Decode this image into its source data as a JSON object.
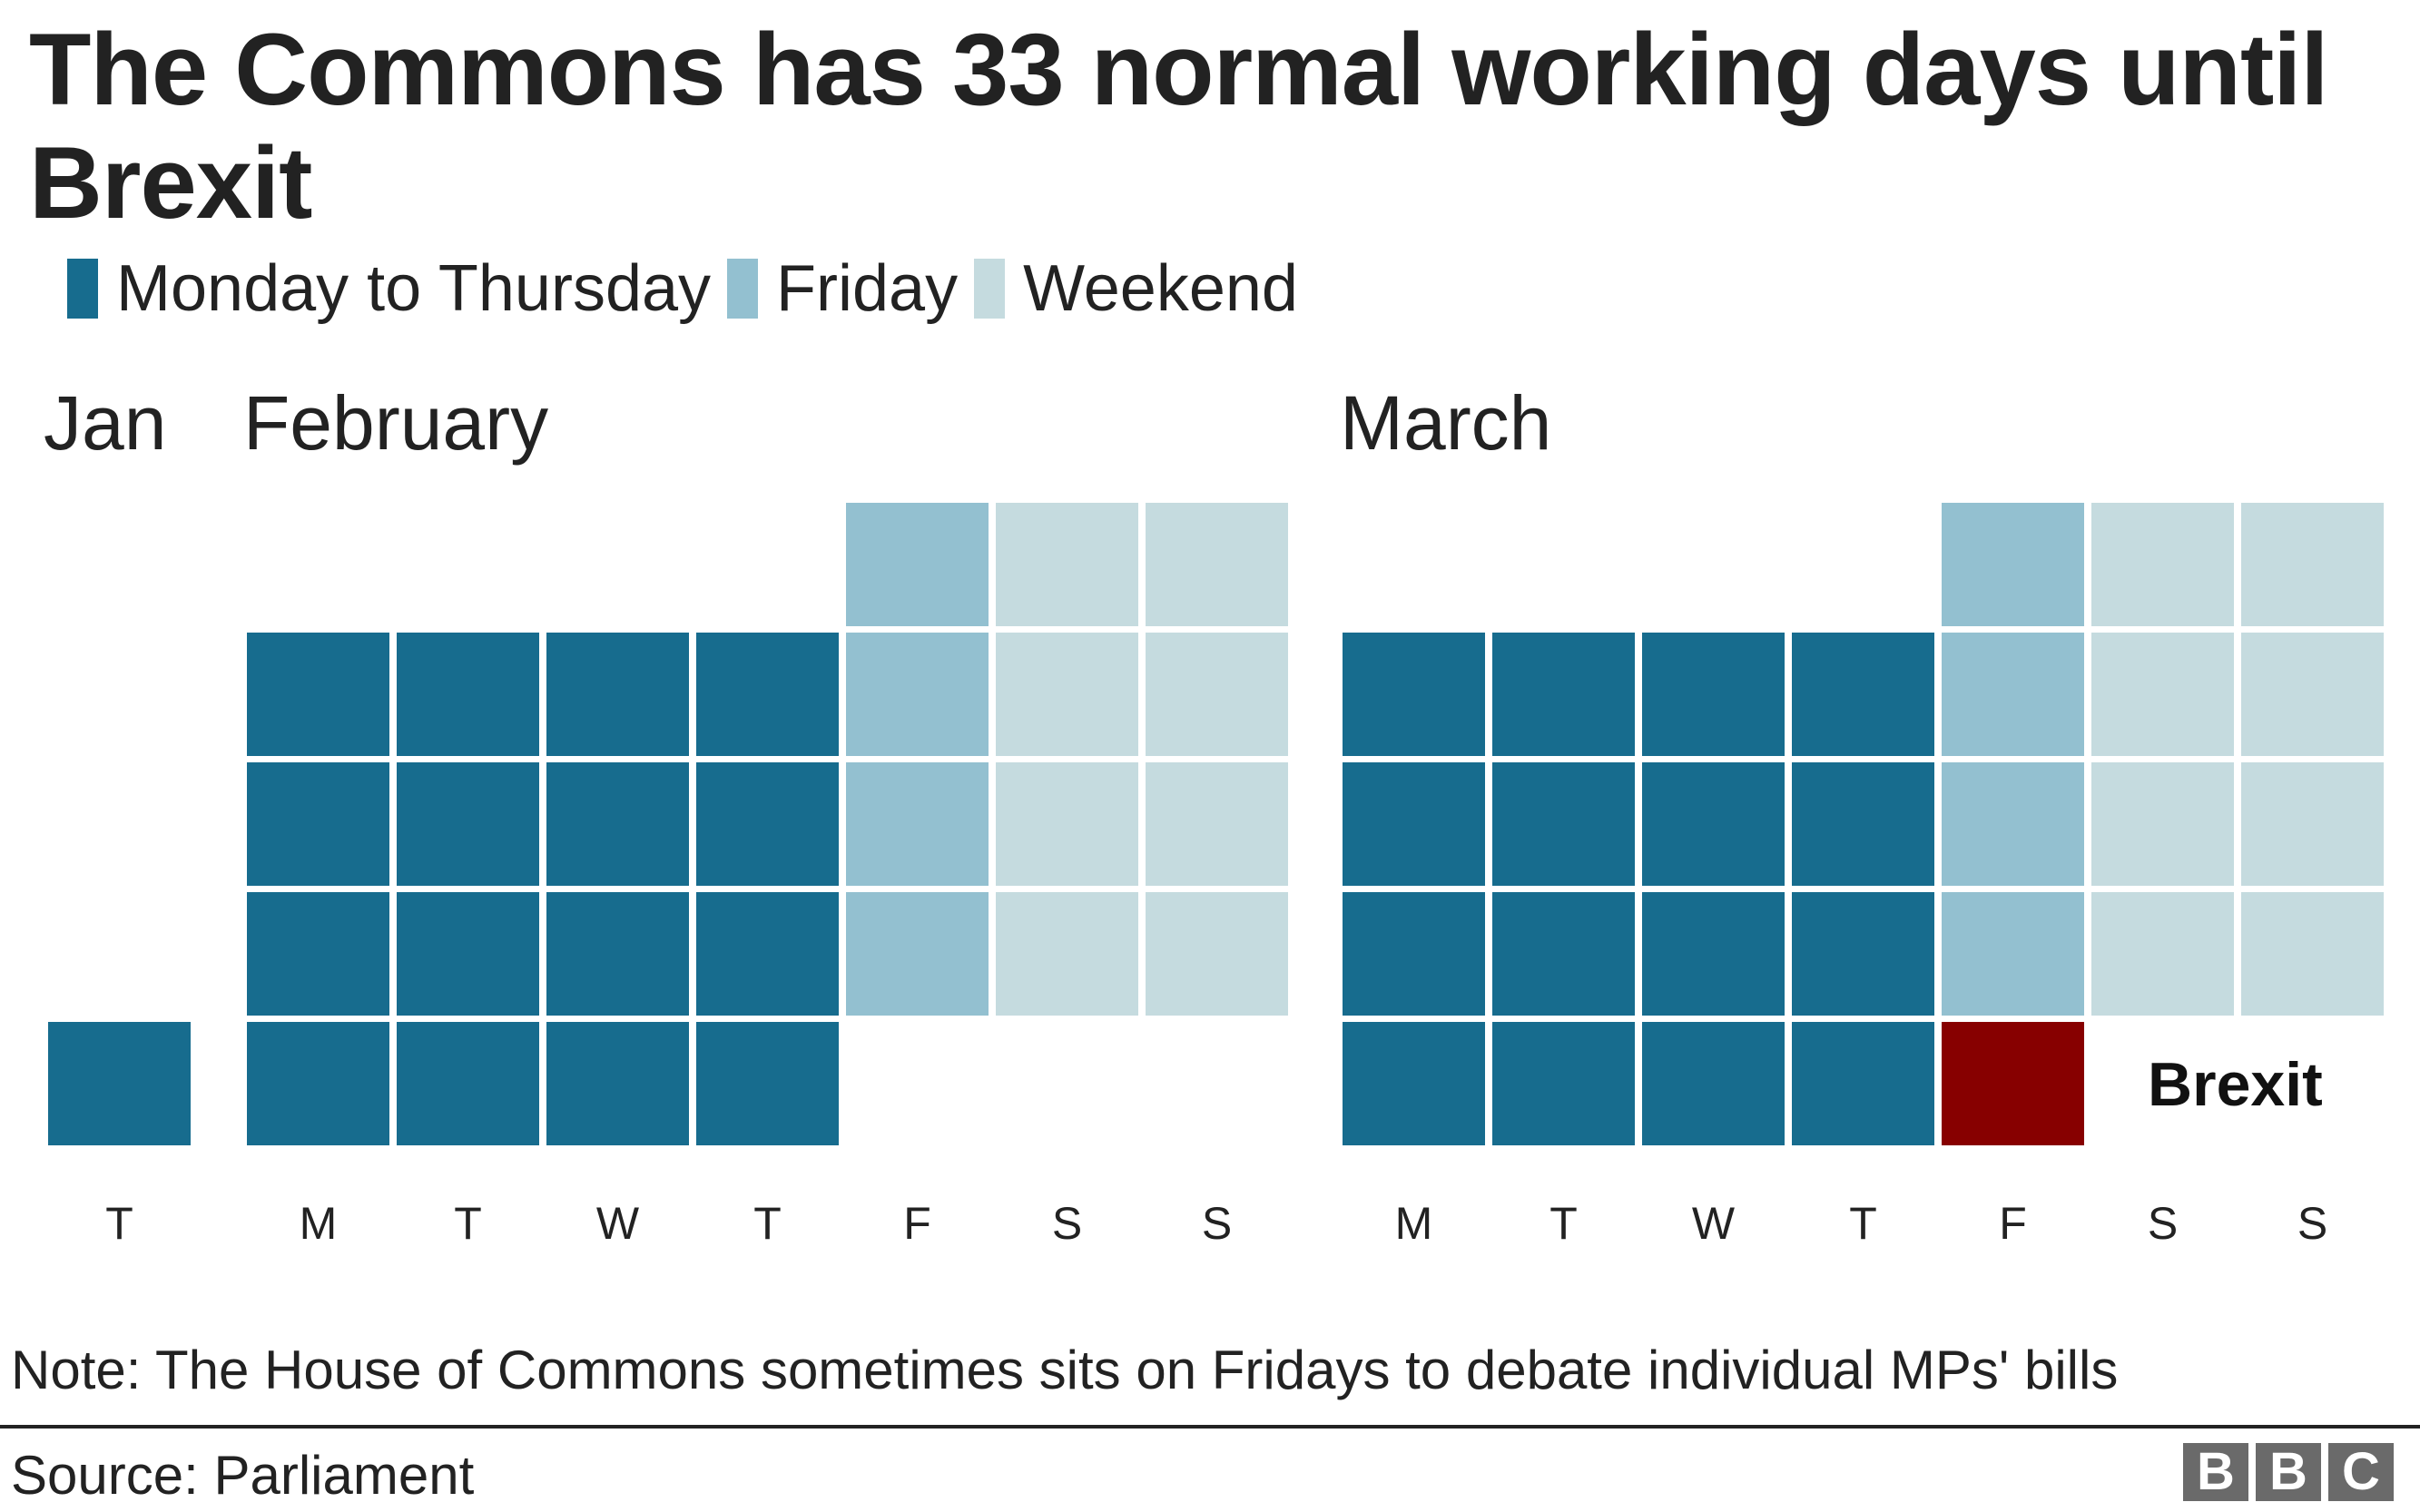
{
  "title": "The Commons has 33 normal working days until Brexit",
  "legend": [
    {
      "label": "Monday to Thursday",
      "color": "#176c8e"
    },
    {
      "label": "Friday",
      "color": "#93c0d0"
    },
    {
      "label": "Weekend",
      "color": "#c5dbdf"
    }
  ],
  "months": {
    "jan": "Jan",
    "feb": "February",
    "mar": "March"
  },
  "day_labels": {
    "jan": [
      "T"
    ],
    "feb": [
      "M",
      "T",
      "W",
      "T",
      "F",
      "S",
      "S"
    ],
    "mar": [
      "M",
      "T",
      "W",
      "T",
      "F",
      "S",
      "S"
    ]
  },
  "brexit_label": "Brexit",
  "note": "Note: The House of Commons sometimes sits on Fridays to debate individual MPs' bills",
  "source": "Source: Parliament",
  "logo": [
    "B",
    "B",
    "C"
  ],
  "colors": {
    "weekday": "#176c8e",
    "friday": "#93c0d0",
    "weekend": "#c5dbdf",
    "brexit": "#870000"
  },
  "chart_data": {
    "type": "heatmap",
    "title": "The Commons has 33 normal working days until Brexit",
    "legend": [
      "Monday to Thursday",
      "Friday",
      "Weekend"
    ],
    "legend_position": "top",
    "columns": [
      "M",
      "T",
      "W",
      "T",
      "F",
      "S",
      "S"
    ],
    "months": [
      {
        "name": "Jan",
        "weeks": [
          [
            "",
            "",
            "",
            "",
            "",
            "",
            ""
          ],
          [
            "",
            "",
            "",
            "",
            "",
            "",
            ""
          ],
          [
            "",
            "",
            "",
            "",
            "",
            "",
            ""
          ],
          [
            "",
            "",
            "",
            "",
            "",
            "",
            ""
          ],
          [
            "weekday"
          ]
        ],
        "note": "single Thursday (31 Jan) shown"
      },
      {
        "name": "February",
        "weeks": [
          [
            "",
            "",
            "",
            "",
            "friday",
            "weekend",
            "weekend"
          ],
          [
            "weekday",
            "weekday",
            "weekday",
            "weekday",
            "friday",
            "weekend",
            "weekend"
          ],
          [
            "weekday",
            "weekday",
            "weekday",
            "weekday",
            "friday",
            "weekend",
            "weekend"
          ],
          [
            "weekday",
            "weekday",
            "weekday",
            "weekday",
            "friday",
            "weekend",
            "weekend"
          ],
          [
            "weekday",
            "weekday",
            "weekday",
            "weekday",
            "",
            "",
            ""
          ]
        ]
      },
      {
        "name": "March",
        "weeks": [
          [
            "",
            "",
            "",
            "",
            "friday",
            "weekend",
            "weekend"
          ],
          [
            "weekday",
            "weekday",
            "weekday",
            "weekday",
            "friday",
            "weekend",
            "weekend"
          ],
          [
            "weekday",
            "weekday",
            "weekday",
            "weekday",
            "friday",
            "weekend",
            "weekend"
          ],
          [
            "weekday",
            "weekday",
            "weekday",
            "weekday",
            "friday",
            "weekend",
            "weekend"
          ],
          [
            "weekday",
            "weekday",
            "weekday",
            "weekday",
            "brexit",
            "",
            ""
          ]
        ]
      }
    ],
    "counts": {
      "jan_weekdays": 1,
      "feb_weekdays": 16,
      "mar_weekdays": 16,
      "total_working_days": 33
    },
    "annotation": "Brexit"
  }
}
